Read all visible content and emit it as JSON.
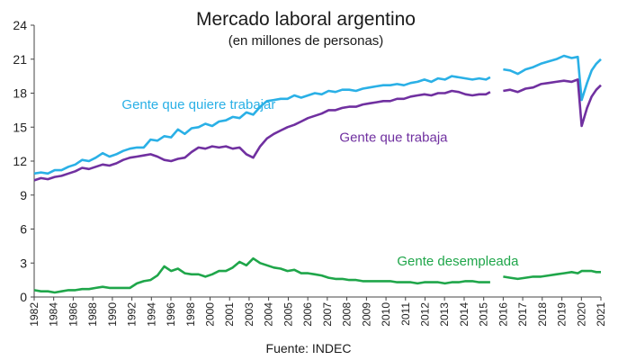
{
  "chart_data": {
    "type": "line",
    "title": "Mercado laboral argentino",
    "subtitle": "(en millones de personas)",
    "source": "Fuente: INDEC",
    "xlabel": "",
    "ylabel": "",
    "ylim": [
      0,
      24
    ],
    "yticks": [
      0,
      3,
      6,
      9,
      12,
      15,
      18,
      21,
      24
    ],
    "xlim": [
      1982,
      2021.5
    ],
    "xticks": [
      "1982",
      "1984",
      "1986",
      "1988",
      "1990",
      "1992",
      "1994",
      "1996",
      "1998",
      "2000",
      "2001",
      "2003",
      "2004",
      "2005",
      "2006",
      "2007",
      "2008",
      "2009",
      "2010",
      "2011",
      "2012",
      "2013",
      "2014",
      "2015",
      "2016",
      "2017",
      "2018",
      "2019",
      "2020",
      "2021"
    ],
    "xtick_values": [
      1982,
      1983.36,
      1984.72,
      1986.09,
      1987.45,
      1988.81,
      1990.17,
      1991.53,
      1992.9,
      1994.26,
      1995.62,
      1996.98,
      1998.34,
      1999.71,
      2001.07,
      2002.43,
      2003.79,
      2005.16,
      2006.52,
      2007.88,
      2009.24,
      2010.6,
      2011.97,
      2013.33,
      2014.69,
      2016.05,
      2017.41,
      2018.78,
      2020.14,
      2021.5
    ],
    "series": [
      {
        "name": "Gente que quiere trabajar",
        "color": "#2ab0e6",
        "label_x": 1988.4,
        "label_y": 16.6,
        "points": [
          [
            1982,
            10.9
          ],
          [
            1982.5,
            11.0
          ],
          [
            1983,
            10.9
          ],
          [
            1983.5,
            11.2
          ],
          [
            1984,
            11.2
          ],
          [
            1984.5,
            11.5
          ],
          [
            1985,
            11.7
          ],
          [
            1985.5,
            12.1
          ],
          [
            1986,
            12.0
          ],
          [
            1986.5,
            12.3
          ],
          [
            1987,
            12.7
          ],
          [
            1987.5,
            12.4
          ],
          [
            1988,
            12.6
          ],
          [
            1988.5,
            12.9
          ],
          [
            1989,
            13.1
          ],
          [
            1989.5,
            13.2
          ],
          [
            1990,
            13.2
          ],
          [
            1990.5,
            13.9
          ],
          [
            1991,
            13.8
          ],
          [
            1991.5,
            14.2
          ],
          [
            1992,
            14.1
          ],
          [
            1992.5,
            14.8
          ],
          [
            1993,
            14.4
          ],
          [
            1993.5,
            14.9
          ],
          [
            1994,
            15.0
          ],
          [
            1994.5,
            15.3
          ],
          [
            1995,
            15.1
          ],
          [
            1995.5,
            15.5
          ],
          [
            1996,
            15.6
          ],
          [
            1996.5,
            15.9
          ],
          [
            1997,
            15.8
          ],
          [
            1997.5,
            16.3
          ],
          [
            1998,
            16.1
          ],
          [
            1998.5,
            16.8
          ],
          [
            1999,
            17.3
          ],
          [
            1999.5,
            17.4
          ],
          [
            2000,
            17.5
          ],
          [
            2000.5,
            17.5
          ],
          [
            2001,
            17.8
          ],
          [
            2001.5,
            17.6
          ],
          [
            2002,
            17.8
          ],
          [
            2002.5,
            18.0
          ],
          [
            2003,
            17.9
          ],
          [
            2003.5,
            18.2
          ],
          [
            2004,
            18.1
          ],
          [
            2004.5,
            18.3
          ],
          [
            2005,
            18.3
          ],
          [
            2005.5,
            18.2
          ],
          [
            2006,
            18.4
          ],
          [
            2006.5,
            18.5
          ],
          [
            2007,
            18.6
          ],
          [
            2007.5,
            18.7
          ],
          [
            2008,
            18.7
          ],
          [
            2008.5,
            18.8
          ],
          [
            2009,
            18.7
          ],
          [
            2009.5,
            18.9
          ],
          [
            2010,
            19.0
          ],
          [
            2010.5,
            19.2
          ],
          [
            2011,
            19.0
          ],
          [
            2011.5,
            19.3
          ],
          [
            2012,
            19.2
          ],
          [
            2012.5,
            19.5
          ],
          [
            2013,
            19.4
          ],
          [
            2013.5,
            19.3
          ],
          [
            2014,
            19.2
          ],
          [
            2014.5,
            19.3
          ],
          [
            2015,
            19.2
          ],
          [
            2015.3,
            19.4
          ]
        ],
        "points_after_gap": [
          [
            2016.05,
            20.1
          ],
          [
            2016.5,
            20.0
          ],
          [
            2017,
            19.7
          ],
          [
            2017.5,
            20.1
          ],
          [
            2018,
            20.3
          ],
          [
            2018.5,
            20.6
          ],
          [
            2019,
            20.8
          ],
          [
            2019.5,
            21.0
          ],
          [
            2020,
            21.3
          ],
          [
            2020.5,
            21.1
          ],
          [
            2020.9,
            21.2
          ],
          [
            2021.15,
            17.4
          ],
          [
            2021.5,
            18.9
          ],
          [
            2021.8,
            20.0
          ],
          [
            2022.1,
            20.6
          ],
          [
            2022.4,
            21.0
          ]
        ]
      },
      {
        "name": "Gente que trabaja",
        "color": "#7030a0",
        "label_x": 2004.3,
        "label_y": 13.7,
        "points": [
          [
            1982,
            10.3
          ],
          [
            1982.5,
            10.5
          ],
          [
            1983,
            10.4
          ],
          [
            1983.5,
            10.6
          ],
          [
            1984,
            10.7
          ],
          [
            1984.5,
            10.9
          ],
          [
            1985,
            11.1
          ],
          [
            1985.5,
            11.4
          ],
          [
            1986,
            11.3
          ],
          [
            1986.5,
            11.5
          ],
          [
            1987,
            11.7
          ],
          [
            1987.5,
            11.6
          ],
          [
            1988,
            11.8
          ],
          [
            1988.5,
            12.1
          ],
          [
            1989,
            12.3
          ],
          [
            1989.5,
            12.4
          ],
          [
            1990,
            12.5
          ],
          [
            1990.5,
            12.6
          ],
          [
            1991,
            12.4
          ],
          [
            1991.5,
            12.1
          ],
          [
            1992,
            12.0
          ],
          [
            1992.5,
            12.2
          ],
          [
            1993,
            12.3
          ],
          [
            1993.5,
            12.8
          ],
          [
            1994,
            13.2
          ],
          [
            1994.5,
            13.1
          ],
          [
            1995,
            13.3
          ],
          [
            1995.5,
            13.2
          ],
          [
            1996,
            13.3
          ],
          [
            1996.5,
            13.1
          ],
          [
            1997,
            13.2
          ],
          [
            1997.5,
            12.6
          ],
          [
            1998,
            12.3
          ],
          [
            1998.5,
            13.3
          ],
          [
            1999,
            14.0
          ],
          [
            1999.5,
            14.4
          ],
          [
            2000,
            14.7
          ],
          [
            2000.5,
            15.0
          ],
          [
            2001,
            15.2
          ],
          [
            2001.5,
            15.5
          ],
          [
            2002,
            15.8
          ],
          [
            2002.5,
            16.0
          ],
          [
            2003,
            16.2
          ],
          [
            2003.5,
            16.5
          ],
          [
            2004,
            16.5
          ],
          [
            2004.5,
            16.7
          ],
          [
            2005,
            16.8
          ],
          [
            2005.5,
            16.8
          ],
          [
            2006,
            17.0
          ],
          [
            2006.5,
            17.1
          ],
          [
            2007,
            17.2
          ],
          [
            2007.5,
            17.3
          ],
          [
            2008,
            17.3
          ],
          [
            2008.5,
            17.5
          ],
          [
            2009,
            17.5
          ],
          [
            2009.5,
            17.7
          ],
          [
            2010,
            17.8
          ],
          [
            2010.5,
            17.9
          ],
          [
            2011,
            17.8
          ],
          [
            2011.5,
            18.0
          ],
          [
            2012,
            18.0
          ],
          [
            2012.5,
            18.2
          ],
          [
            2013,
            18.1
          ],
          [
            2013.5,
            17.9
          ],
          [
            2014,
            17.8
          ],
          [
            2014.5,
            17.9
          ],
          [
            2015,
            17.9
          ],
          [
            2015.3,
            18.1
          ]
        ],
        "points_after_gap": [
          [
            2016.05,
            18.2
          ],
          [
            2016.5,
            18.3
          ],
          [
            2017,
            18.1
          ],
          [
            2017.5,
            18.4
          ],
          [
            2018,
            18.5
          ],
          [
            2018.5,
            18.8
          ],
          [
            2019,
            18.9
          ],
          [
            2019.5,
            19.0
          ],
          [
            2020,
            19.1
          ],
          [
            2020.5,
            19.0
          ],
          [
            2020.9,
            19.2
          ],
          [
            2021.15,
            15.1
          ],
          [
            2021.5,
            16.7
          ],
          [
            2021.8,
            17.7
          ],
          [
            2022.1,
            18.3
          ],
          [
            2022.4,
            18.7
          ]
        ]
      },
      {
        "name": "Gente desempleada",
        "color": "#1fa64a",
        "label_x": 2008.5,
        "label_y": 2.8,
        "points": [
          [
            1982,
            0.6
          ],
          [
            1982.5,
            0.5
          ],
          [
            1983,
            0.5
          ],
          [
            1983.5,
            0.4
          ],
          [
            1984,
            0.5
          ],
          [
            1984.5,
            0.6
          ],
          [
            1985,
            0.6
          ],
          [
            1985.5,
            0.7
          ],
          [
            1986,
            0.7
          ],
          [
            1986.5,
            0.8
          ],
          [
            1987,
            0.9
          ],
          [
            1987.5,
            0.8
          ],
          [
            1988,
            0.8
          ],
          [
            1988.5,
            0.8
          ],
          [
            1989,
            0.8
          ],
          [
            1989.5,
            1.2
          ],
          [
            1990,
            1.4
          ],
          [
            1990.5,
            1.5
          ],
          [
            1991,
            1.9
          ],
          [
            1991.5,
            2.7
          ],
          [
            1992,
            2.3
          ],
          [
            1992.5,
            2.5
          ],
          [
            1993,
            2.1
          ],
          [
            1993.5,
            2.0
          ],
          [
            1994,
            2.0
          ],
          [
            1994.5,
            1.8
          ],
          [
            1995,
            2.0
          ],
          [
            1995.5,
            2.3
          ],
          [
            1996,
            2.3
          ],
          [
            1996.5,
            2.6
          ],
          [
            1997,
            3.1
          ],
          [
            1997.5,
            2.8
          ],
          [
            1998,
            3.4
          ],
          [
            1998.5,
            3.0
          ],
          [
            1999,
            2.8
          ],
          [
            1999.5,
            2.6
          ],
          [
            2000,
            2.5
          ],
          [
            2000.5,
            2.3
          ],
          [
            2001,
            2.4
          ],
          [
            2001.5,
            2.1
          ],
          [
            2002,
            2.1
          ],
          [
            2002.5,
            2.0
          ],
          [
            2003,
            1.9
          ],
          [
            2003.5,
            1.7
          ],
          [
            2004,
            1.6
          ],
          [
            2004.5,
            1.6
          ],
          [
            2005,
            1.5
          ],
          [
            2005.5,
            1.5
          ],
          [
            2006,
            1.4
          ],
          [
            2006.5,
            1.4
          ],
          [
            2007,
            1.4
          ],
          [
            2007.5,
            1.4
          ],
          [
            2008,
            1.4
          ],
          [
            2008.5,
            1.3
          ],
          [
            2009,
            1.3
          ],
          [
            2009.5,
            1.3
          ],
          [
            2010,
            1.2
          ],
          [
            2010.5,
            1.3
          ],
          [
            2011,
            1.3
          ],
          [
            2011.5,
            1.3
          ],
          [
            2012,
            1.2
          ],
          [
            2012.5,
            1.3
          ],
          [
            2013,
            1.3
          ],
          [
            2013.5,
            1.4
          ],
          [
            2014,
            1.4
          ],
          [
            2014.5,
            1.3
          ],
          [
            2015,
            1.3
          ],
          [
            2015.3,
            1.3
          ]
        ],
        "points_after_gap": [
          [
            2016.05,
            1.8
          ],
          [
            2016.5,
            1.7
          ],
          [
            2017,
            1.6
          ],
          [
            2017.5,
            1.7
          ],
          [
            2018,
            1.8
          ],
          [
            2018.5,
            1.8
          ],
          [
            2019,
            1.9
          ],
          [
            2019.5,
            2.0
          ],
          [
            2020,
            2.1
          ],
          [
            2020.5,
            2.2
          ],
          [
            2020.9,
            2.1
          ],
          [
            2021.15,
            2.3
          ],
          [
            2021.5,
            2.3
          ],
          [
            2021.8,
            2.3
          ],
          [
            2022.1,
            2.2
          ],
          [
            2022.4,
            2.2
          ]
        ]
      }
    ]
  }
}
